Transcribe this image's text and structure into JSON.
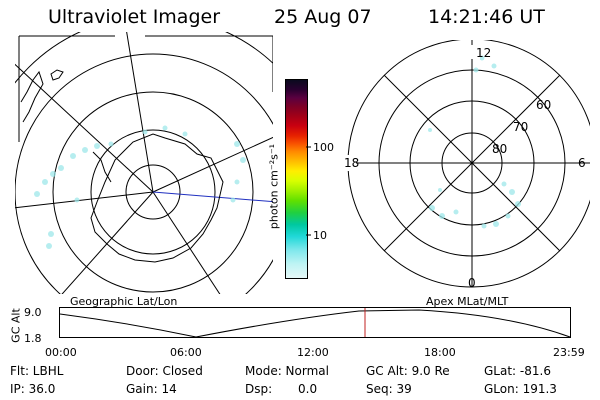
{
  "header": {
    "instrument": "Ultraviolet Imager",
    "date": "25 Aug 07",
    "time": "14:21:46 UT"
  },
  "left_panel": {
    "caption": "Geographic Lat/Lon"
  },
  "right_panel": {
    "caption": "Apex MLat/MLT",
    "mlt_labels": {
      "top": "12",
      "left": "18",
      "right": "6",
      "bottom": "0"
    },
    "mlat_labels": [
      "60",
      "70",
      "80"
    ]
  },
  "colorbar": {
    "unit_label": "photon cm⁻²s⁻¹",
    "tick_labels": [
      "100",
      "10"
    ],
    "colors": [
      "#0a0a1e",
      "#2a0030",
      "#5a0040",
      "#7a0028",
      "#a00018",
      "#c80010",
      "#e62000",
      "#f85000",
      "#ff8800",
      "#ffbb00",
      "#ffee00",
      "#d8ff00",
      "#a0f000",
      "#60e000",
      "#20d040",
      "#00c8a0",
      "#20d8d8",
      "#80e8ec",
      "#bff4f4",
      "#e6f8f8"
    ]
  },
  "altitude_plot": {
    "ylabel": "GC Alt",
    "y_ticks": [
      "9.0",
      "1.8"
    ],
    "x_ticks": [
      "00:00",
      "06:00",
      "12:00",
      "18:00",
      "23:59"
    ],
    "marker_time": "14:21"
  },
  "info": {
    "filter": "Flt: LBHL",
    "ip": "IP: 36.0",
    "door": "Door: Closed",
    "gain": "Gain: 14",
    "mode": "Mode: Normal",
    "dsp_label": "Dsp:",
    "dsp_value": "0.0",
    "gc_alt": "GC Alt: 9.0 Re",
    "seq": "Seq: 39",
    "glat": "GLat: -81.6",
    "glon": "GLon: 191.3"
  }
}
